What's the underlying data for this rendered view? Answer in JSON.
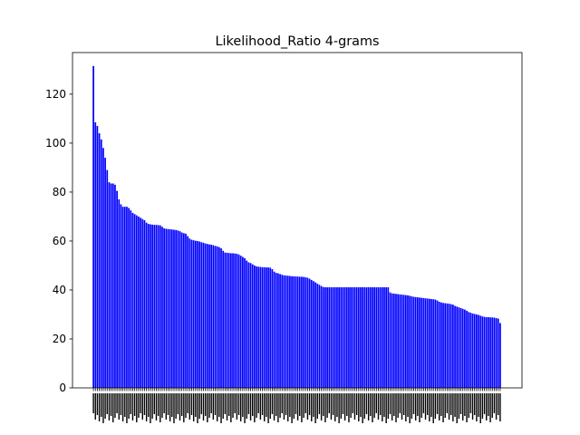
{
  "chart_data": {
    "type": "bar",
    "title": "Likelihood_Ratio 4-grams",
    "xlabel": "",
    "ylabel": "",
    "ylim": [
      0,
      137
    ],
    "yticks": [
      0,
      20,
      40,
      60,
      80,
      100,
      120
    ],
    "bar_color": "#0000ff",
    "grid": false,
    "legend": "none",
    "categories_note": "x tick labels are rotated 90° and overlap; individual n-gram text is not legible",
    "values": [
      131.5,
      108.5,
      107.0,
      104.0,
      101.5,
      98.0,
      94.0,
      89.0,
      84.0,
      83.5,
      83.5,
      83.0,
      80.5,
      77.0,
      75.0,
      74.0,
      74.0,
      74.0,
      73.5,
      72.5,
      71.5,
      71.0,
      70.5,
      70.0,
      69.5,
      69.0,
      68.5,
      67.5,
      67.0,
      66.8,
      66.7,
      66.6,
      66.6,
      66.5,
      66.4,
      65.8,
      65.2,
      65.0,
      64.9,
      64.8,
      64.7,
      64.6,
      64.5,
      64.3,
      64.0,
      63.5,
      63.2,
      63.0,
      62.0,
      61.0,
      60.5,
      60.3,
      60.1,
      60.0,
      59.8,
      59.5,
      59.3,
      59.0,
      58.8,
      58.6,
      58.5,
      58.3,
      58.0,
      57.8,
      57.5,
      57.0,
      56.0,
      55.3,
      55.2,
      55.1,
      55.0,
      55.0,
      54.9,
      54.8,
      54.5,
      54.0,
      53.5,
      53.0,
      52.0,
      51.3,
      51.0,
      50.5,
      50.0,
      49.6,
      49.5,
      49.4,
      49.3,
      49.3,
      49.2,
      49.2,
      49.1,
      48.5,
      47.5,
      47.0,
      46.8,
      46.5,
      46.2,
      46.0,
      45.9,
      45.8,
      45.7,
      45.6,
      45.6,
      45.5,
      45.5,
      45.4,
      45.4,
      45.3,
      45.2,
      45.0,
      44.6,
      44.1,
      43.6,
      43.1,
      42.6,
      42.1,
      41.6,
      41.2,
      41.1,
      41.1,
      41.1,
      41.1,
      41.1,
      41.1,
      41.1,
      41.1,
      41.1,
      41.1,
      41.1,
      41.1,
      41.1,
      41.1,
      41.1,
      41.1,
      41.1,
      41.1,
      41.1,
      41.1,
      41.1,
      41.1,
      41.1,
      41.1,
      41.1,
      41.1,
      41.1,
      41.1,
      41.1,
      41.1,
      41.1,
      41.1,
      41.1,
      39.0,
      38.6,
      38.5,
      38.4,
      38.3,
      38.2,
      38.1,
      38.0,
      37.9,
      37.8,
      37.6,
      37.4,
      37.2,
      37.1,
      37.0,
      36.9,
      36.8,
      36.7,
      36.6,
      36.5,
      36.4,
      36.3,
      36.2,
      36.1,
      35.7,
      35.2,
      34.9,
      34.7,
      34.6,
      34.5,
      34.4,
      34.2,
      34.0,
      33.5,
      33.2,
      32.9,
      32.6,
      32.3,
      32.0,
      31.5,
      31.0,
      30.7,
      30.4,
      30.2,
      30.0,
      29.8,
      29.5,
      29.2,
      29.0,
      28.9,
      28.9,
      28.8,
      28.8,
      28.7,
      28.5,
      28.3,
      26.5
    ]
  }
}
